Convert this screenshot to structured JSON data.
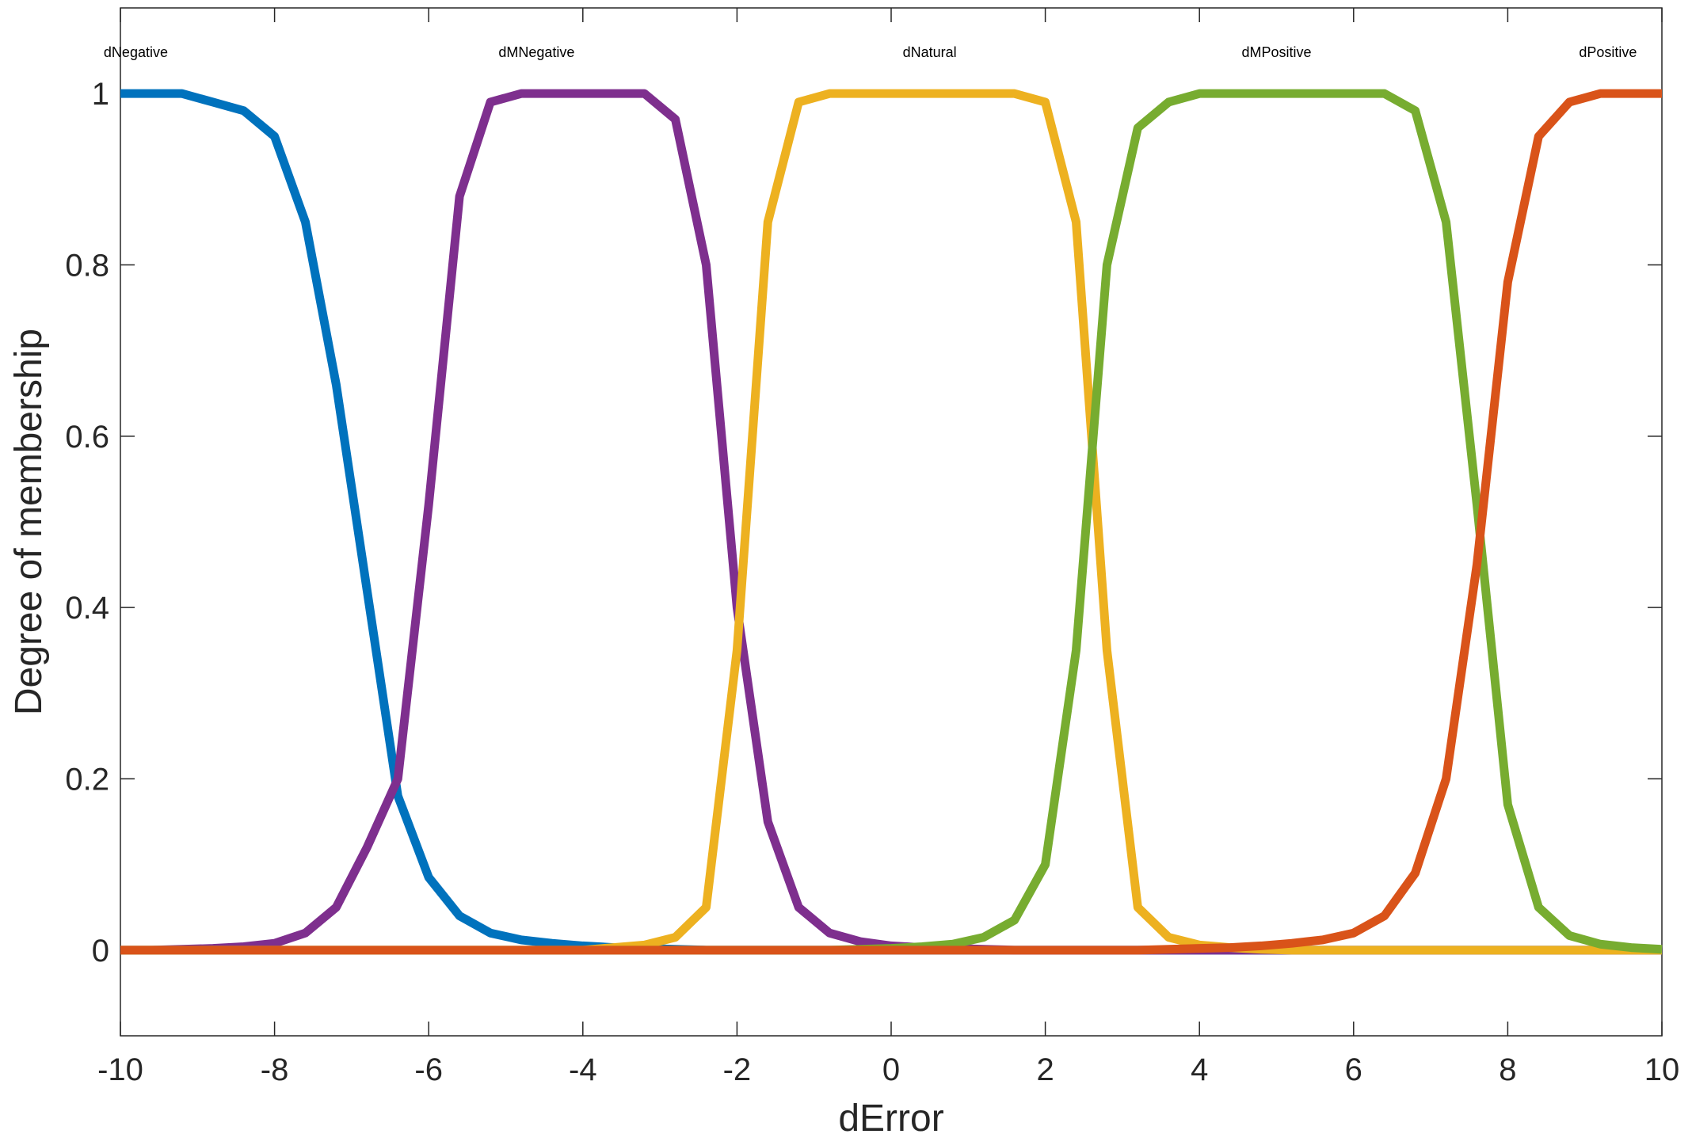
{
  "chart_data": {
    "type": "line",
    "xlabel": "dError",
    "ylabel": "Degree of membership",
    "xlim": [
      -10,
      10
    ],
    "ylim": [
      -0.1,
      1.1
    ],
    "xticks": [
      "-10",
      "-8",
      "-6",
      "-4",
      "-2",
      "0",
      "2",
      "4",
      "6",
      "8",
      "10"
    ],
    "yticks": [
      "0",
      "0.2",
      "0.4",
      "0.6",
      "0.8",
      "1"
    ],
    "grid": false,
    "x": [
      -10,
      -9.6,
      -9.2,
      -8.8,
      -8.4,
      -8,
      -7.6,
      -7.2,
      -6.8,
      -6.4,
      -6,
      -5.6,
      -5.2,
      -4.8,
      -4.4,
      -4,
      -3.6,
      -3.2,
      -2.8,
      -2.4,
      -2,
      -1.6,
      -1.2,
      -0.8,
      -0.4,
      0,
      0.4,
      0.8,
      1.2,
      1.6,
      2,
      2.4,
      2.8,
      3.2,
      3.6,
      4,
      4.4,
      4.8,
      5.2,
      5.6,
      6,
      6.4,
      6.8,
      7.2,
      7.6,
      8,
      8.4,
      8.8,
      9.2,
      9.6,
      10
    ],
    "series": [
      {
        "name": "dNegative",
        "color": "#0072BD",
        "label_x": -9.8,
        "values": [
          1,
          1,
          1,
          0.99,
          0.98,
          0.95,
          0.85,
          0.66,
          0.42,
          0.18,
          0.085,
          0.04,
          0.02,
          0.012,
          0.008,
          0.005,
          0.003,
          0.002,
          0.001,
          0,
          0,
          0,
          0,
          0,
          0,
          0,
          0,
          0,
          0,
          0,
          0,
          0,
          0,
          0,
          0,
          0,
          0,
          0,
          0,
          0,
          0,
          0,
          0,
          0,
          0,
          0,
          0,
          0,
          0,
          0,
          0
        ]
      },
      {
        "name": "dMNegative",
        "color": "#7E2F8E",
        "label_x": -4.6,
        "values": [
          0,
          0,
          0.001,
          0.002,
          0.004,
          0.008,
          0.02,
          0.05,
          0.12,
          0.2,
          0.52,
          0.88,
          0.99,
          1,
          1,
          1,
          1,
          1,
          0.97,
          0.8,
          0.4,
          0.15,
          0.05,
          0.02,
          0.01,
          0.005,
          0.003,
          0.002,
          0.001,
          0,
          0,
          0,
          0,
          0,
          0,
          0,
          0,
          0,
          0,
          0,
          0,
          0,
          0,
          0,
          0,
          0,
          0,
          0,
          0,
          0,
          0
        ]
      },
      {
        "name": "dNatural",
        "color": "#EDB120",
        "label_x": 0.5,
        "values": [
          0,
          0,
          0,
          0,
          0,
          0,
          0,
          0,
          0,
          0,
          0,
          0,
          0,
          0,
          0,
          0,
          0.003,
          0.006,
          0.015,
          0.05,
          0.35,
          0.85,
          0.99,
          1,
          1,
          1,
          1,
          1,
          1,
          1,
          0.99,
          0.85,
          0.35,
          0.05,
          0.015,
          0.006,
          0.003,
          0.001,
          0,
          0,
          0,
          0,
          0,
          0,
          0,
          0,
          0,
          0,
          0,
          0,
          0
        ]
      },
      {
        "name": "dMPositive",
        "color": "#77AC30",
        "label_x": 5.0,
        "values": [
          0,
          0,
          0,
          0,
          0,
          0,
          0,
          0,
          0,
          0,
          0,
          0,
          0,
          0,
          0,
          0,
          0,
          0,
          0,
          0,
          0,
          0,
          0,
          0,
          0.001,
          0.002,
          0.004,
          0.007,
          0.015,
          0.035,
          0.1,
          0.35,
          0.8,
          0.96,
          0.99,
          1,
          1,
          1,
          1,
          1,
          1,
          1,
          0.98,
          0.85,
          0.52,
          0.17,
          0.05,
          0.017,
          0.007,
          0.003,
          0.001
        ]
      },
      {
        "name": "dPositive",
        "color": "#D95319",
        "label_x": 9.3,
        "values": [
          0,
          0,
          0,
          0,
          0,
          0,
          0,
          0,
          0,
          0,
          0,
          0,
          0,
          0,
          0,
          0,
          0,
          0,
          0,
          0,
          0,
          0,
          0,
          0,
          0,
          0,
          0,
          0,
          0,
          0,
          0,
          0,
          0,
          0,
          0.001,
          0.002,
          0.003,
          0.005,
          0.008,
          0.012,
          0.02,
          0.04,
          0.09,
          0.2,
          0.45,
          0.78,
          0.95,
          0.99,
          1,
          1,
          1
        ]
      }
    ]
  }
}
